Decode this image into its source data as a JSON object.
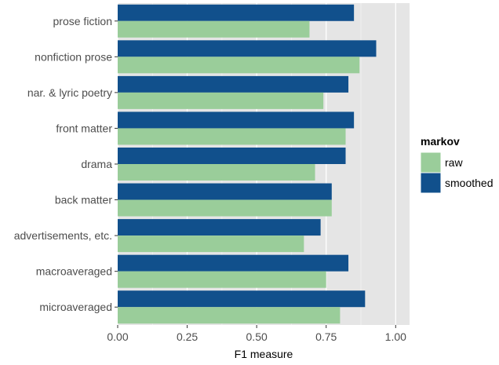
{
  "chart_data": {
    "type": "bar",
    "orientation": "horizontal",
    "xlabel": "F1 measure",
    "ylabel": "",
    "xlim": [
      0,
      1.05
    ],
    "xticks": [
      0,
      0.25,
      0.5,
      0.75,
      1
    ],
    "xtick_labels": [
      "0.00",
      "0.25",
      "0.50",
      "0.75",
      "1.00"
    ],
    "categories": [
      "prose fiction",
      "nonfiction prose",
      "nar. & lyric poetry",
      "front matter",
      "drama",
      "back matter",
      "advertisements, etc.",
      "macroaveraged",
      "microaveraged"
    ],
    "series": [
      {
        "name": "raw",
        "color": "#9acd9a",
        "values": [
          0.69,
          0.87,
          0.74,
          0.82,
          0.71,
          0.77,
          0.67,
          0.75,
          0.8
        ]
      },
      {
        "name": "smoothed",
        "color": "#11508c",
        "values": [
          0.85,
          0.93,
          0.83,
          0.85,
          0.82,
          0.77,
          0.73,
          0.83,
          0.89
        ]
      }
    ],
    "legend": {
      "title": "markov",
      "position": "right"
    },
    "grid": true,
    "panel_background": "#e5e5e5"
  }
}
